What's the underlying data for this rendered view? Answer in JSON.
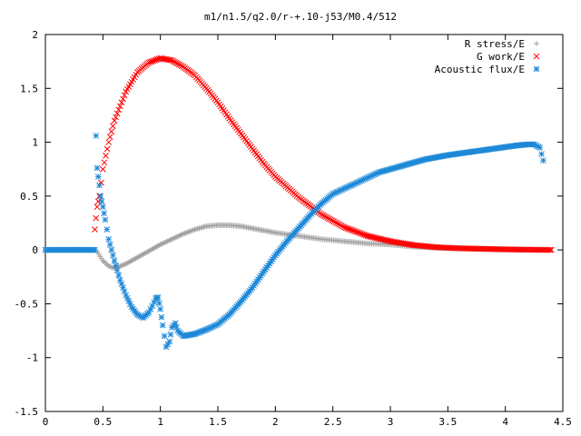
{
  "chart_data": {
    "type": "scatter",
    "title": "m1/n1.5/q2.0/r-+.10-j53/M0.4/512",
    "xlabel": "",
    "ylabel": "",
    "xlim": [
      0,
      4.5
    ],
    "ylim": [
      -1.5,
      2
    ],
    "xticks": [
      "0",
      "0.5",
      "1",
      "1.5",
      "2",
      "2.5",
      "3",
      "3.5",
      "4",
      "4.5"
    ],
    "yticks": [
      "-1.5",
      "-1",
      "-0.5",
      "0",
      "0.5",
      "1",
      "1.5",
      "2"
    ],
    "grid": false,
    "legend_position": "top-right",
    "series": [
      {
        "name": "R stress/E",
        "marker": "plus",
        "color": "#a0a0a0",
        "x": [
          0.0,
          0.2,
          0.44,
          0.5,
          0.55,
          0.6,
          0.7,
          0.8,
          0.9,
          1.0,
          1.1,
          1.2,
          1.3,
          1.4,
          1.5,
          1.6,
          1.7,
          1.8,
          1.9,
          2.0,
          2.2,
          2.4,
          2.6,
          2.8,
          3.0,
          3.2,
          3.4,
          3.6,
          3.8,
          4.0,
          4.2,
          4.33
        ],
        "y": [
          0.0,
          0.0,
          0.0,
          -0.1,
          -0.15,
          -0.17,
          -0.13,
          -0.07,
          -0.01,
          0.05,
          0.1,
          0.15,
          0.19,
          0.22,
          0.23,
          0.23,
          0.22,
          0.2,
          0.18,
          0.16,
          0.13,
          0.1,
          0.08,
          0.06,
          0.05,
          0.03,
          0.02,
          0.015,
          0.01,
          0.005,
          0.003,
          0.0
        ]
      },
      {
        "name": "G work/E",
        "marker": "x",
        "color": "#ff0000",
        "x": [
          0.43,
          0.45,
          0.47,
          0.5,
          0.55,
          0.6,
          0.7,
          0.8,
          0.9,
          1.0,
          1.1,
          1.2,
          1.3,
          1.4,
          1.5,
          1.6,
          1.7,
          1.8,
          1.9,
          2.0,
          2.2,
          2.4,
          2.6,
          2.8,
          3.0,
          3.2,
          3.4,
          3.6,
          3.8,
          4.0,
          4.2,
          4.4
        ],
        "y": [
          0.19,
          0.4,
          0.5,
          0.75,
          1.0,
          1.2,
          1.47,
          1.65,
          1.74,
          1.78,
          1.76,
          1.7,
          1.62,
          1.5,
          1.37,
          1.22,
          1.08,
          0.94,
          0.8,
          0.68,
          0.49,
          0.33,
          0.21,
          0.13,
          0.08,
          0.045,
          0.025,
          0.015,
          0.01,
          0.005,
          0.002,
          0.0
        ]
      },
      {
        "name": "Acoustic flux/E",
        "marker": "star",
        "color": "#1e88d8",
        "x": [
          0.0,
          0.2,
          0.43,
          0.44,
          0.45,
          0.46,
          0.47,
          0.48,
          0.5,
          0.52,
          0.55,
          0.6,
          0.65,
          0.7,
          0.75,
          0.8,
          0.85,
          0.9,
          0.93,
          0.96,
          0.98,
          1.0,
          1.02,
          1.05,
          1.08,
          1.1,
          1.13,
          1.15,
          1.2,
          1.3,
          1.4,
          1.5,
          1.6,
          1.7,
          1.8,
          1.9,
          2.0,
          2.1,
          2.2,
          2.3,
          2.4,
          2.5,
          2.7,
          2.9,
          3.1,
          3.3,
          3.5,
          3.7,
          3.9,
          4.1,
          4.2,
          4.25,
          4.3,
          4.33
        ],
        "y": [
          0.0,
          0.0,
          0.0,
          1.06,
          0.76,
          0.68,
          0.6,
          0.5,
          0.4,
          0.28,
          0.1,
          -0.1,
          -0.28,
          -0.42,
          -0.53,
          -0.6,
          -0.63,
          -0.58,
          -0.52,
          -0.45,
          -0.44,
          -0.55,
          -0.7,
          -0.9,
          -0.85,
          -0.72,
          -0.68,
          -0.75,
          -0.8,
          -0.78,
          -0.74,
          -0.69,
          -0.6,
          -0.48,
          -0.35,
          -0.2,
          -0.05,
          0.08,
          0.2,
          0.32,
          0.43,
          0.52,
          0.62,
          0.72,
          0.78,
          0.84,
          0.88,
          0.91,
          0.94,
          0.97,
          0.98,
          0.98,
          0.95,
          0.83
        ]
      }
    ]
  }
}
